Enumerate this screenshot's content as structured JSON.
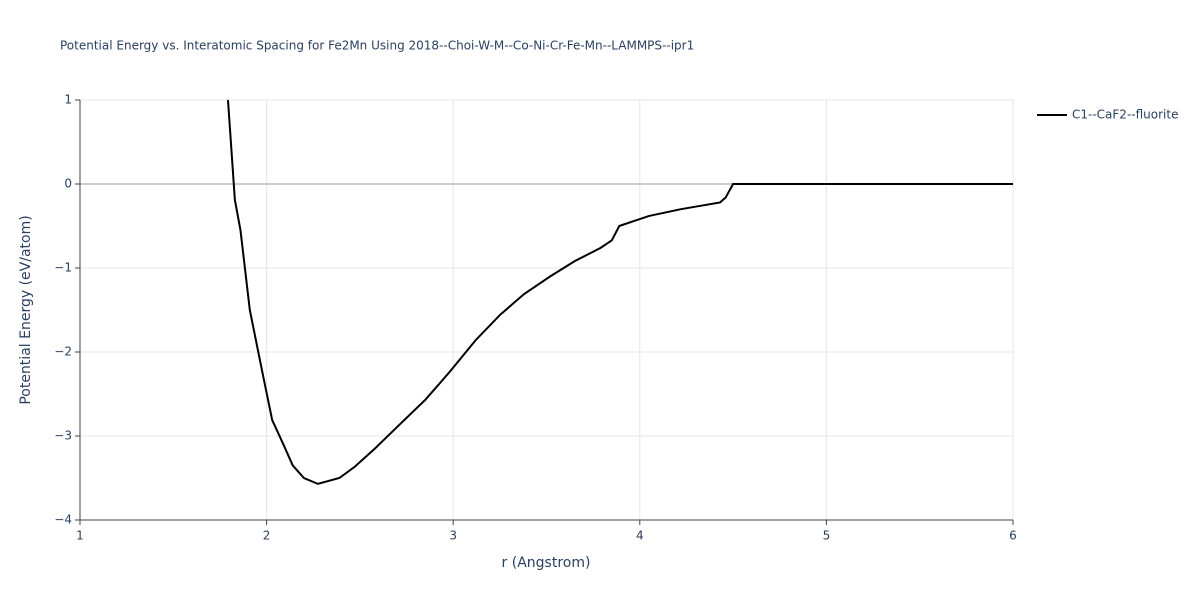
{
  "chart_data": {
    "type": "line",
    "title": "Potential Energy vs. Interatomic Spacing for Fe2Mn Using 2018--Choi-W-M--Co-Ni-Cr-Fe-Mn--LAMMPS--ipr1",
    "x_label": "r (Angstrom)",
    "y_label": "Potential Energy (eV/atom)",
    "x": [
      1.793,
      1.83,
      1.86,
      1.91,
      1.98,
      2.03,
      2.09,
      2.14,
      2.2,
      2.275,
      2.39,
      2.47,
      2.58,
      2.71,
      2.85,
      2.98,
      3.12,
      3.25,
      3.38,
      3.52,
      3.65,
      3.79,
      3.85,
      3.89,
      4.05,
      4.22,
      4.43,
      4.46,
      4.5,
      6.0
    ],
    "series": [
      {
        "name": "C1--CaF2--fluorite",
        "color": "#000000",
        "values": [
          1.0,
          -0.19,
          -0.55,
          -1.5,
          -2.27,
          -2.81,
          -3.1,
          -3.35,
          -3.5,
          -3.57,
          -3.5,
          -3.37,
          -3.15,
          -2.87,
          -2.57,
          -2.24,
          -1.86,
          -1.56,
          -1.31,
          -1.1,
          -0.92,
          -0.76,
          -0.67,
          -0.5,
          -0.38,
          -0.3,
          -0.22,
          -0.16,
          0.0,
          0.0
        ]
      }
    ],
    "xlim": [
      1,
      6
    ],
    "xticks": [
      1,
      2,
      3,
      4,
      5,
      6
    ],
    "ylim": [
      -4,
      1
    ],
    "yticks": [
      1,
      0,
      {
        "value": -1,
        "label": "−1"
      },
      {
        "value": -2,
        "label": "−2"
      },
      {
        "value": -3,
        "label": "−3"
      },
      {
        "value": -4,
        "label": "−4"
      }
    ],
    "grid": true,
    "legend": "top-right"
  }
}
